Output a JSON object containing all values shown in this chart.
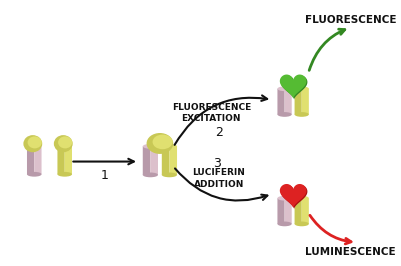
{
  "bg_color": "#ffffff",
  "nc": "#b89aaa",
  "nl": "#dcc0cc",
  "yc": "#c8c855",
  "yl": "#e0e070",
  "grn": "#55bb33",
  "grnd": "#338822",
  "red": "#dd2222",
  "redd": "#aa1111",
  "arrow_color": "#111111",
  "green_arrow_color": "#338822",
  "red_arrow_color": "#dd2222",
  "text_color": "#111111",
  "label_fluorescence": "FLUORESCENCE",
  "label_luminescence": "LUMINESCENCE",
  "label_excitation": "FLUORESCENCE\nEXCITATION",
  "label_luciferin": "LUCIFERIN\nADDITION",
  "num1": "1",
  "num2": "2",
  "num3": "3"
}
